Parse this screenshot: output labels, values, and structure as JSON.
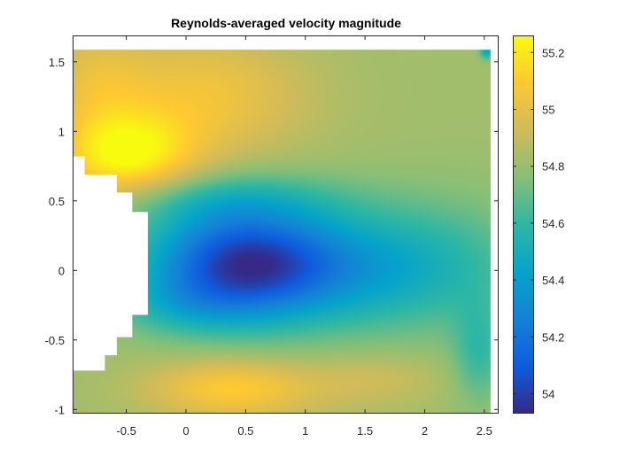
{
  "chart_data": {
    "type": "heatmap",
    "title": "Reynolds-averaged velocity magnitude",
    "xlabel": "",
    "ylabel": "",
    "xlim": [
      -0.95,
      2.62
    ],
    "ylim": [
      -1.03,
      1.69
    ],
    "x_ticks": [
      -0.5,
      0,
      0.5,
      1,
      1.5,
      2,
      2.5
    ],
    "x_tick_labels": [
      "-0.5",
      "0",
      "0.5",
      "1",
      "1.5",
      "2",
      "2.5"
    ],
    "y_ticks": [
      -1,
      -0.5,
      0,
      0.5,
      1,
      1.5
    ],
    "y_tick_labels": [
      "-1",
      "-0.5",
      "0",
      "0.5",
      "1",
      "1.5"
    ],
    "data_extent": {
      "x": [
        -0.95,
        2.55
      ],
      "y": [
        -1.03,
        1.59
      ]
    },
    "colormap": "parula",
    "colormap_stops": [
      "#352a87",
      "#0f5cdd",
      "#1481d6",
      "#06a4ca",
      "#2eb7a4",
      "#87bf77",
      "#d1bb59",
      "#fec832",
      "#f9fb0e"
    ],
    "colorbar": {
      "range": [
        53.93,
        55.26
      ],
      "ticks": [
        54,
        54.2,
        54.4,
        54.6,
        54.8,
        55,
        55.2
      ],
      "tick_labels": [
        "54",
        "54.2",
        "54.4",
        "54.6",
        "54.8",
        "55",
        "55.2"
      ]
    },
    "field": {
      "background": 54.82,
      "features": [
        {
          "name": "wake core",
          "x": 0.45,
          "y": 0.05,
          "sx": 0.55,
          "sy": 0.28,
          "delta": -0.72
        },
        {
          "name": "wake lower edge",
          "x": -0.05,
          "y": -0.25,
          "sx": 0.4,
          "sy": 0.15,
          "delta": -0.15
        },
        {
          "name": "wake extension",
          "x": 1.35,
          "y": 0.02,
          "sx": 0.75,
          "sy": 0.3,
          "delta": -0.34
        },
        {
          "name": "far wake",
          "x": 2.2,
          "y": 0.05,
          "sx": 0.5,
          "sy": 0.35,
          "delta": -0.1
        },
        {
          "name": "upper shear layer",
          "x": 0.25,
          "y": 0.52,
          "sx": 0.7,
          "sy": 0.14,
          "delta": -0.18
        },
        {
          "name": "upper-left fast region",
          "x": -0.5,
          "y": 0.82,
          "sx": 0.4,
          "sy": 0.22,
          "delta": 0.42
        },
        {
          "name": "upper fast band",
          "x": 0.15,
          "y": 1.25,
          "sx": 0.6,
          "sy": 0.32,
          "delta": 0.22
        },
        {
          "name": "top-left fast region",
          "x": -0.75,
          "y": 1.35,
          "sx": 0.3,
          "sy": 0.3,
          "delta": 0.15
        },
        {
          "name": "bottom fast region",
          "x": 0.4,
          "y": -0.85,
          "sx": 0.5,
          "sy": 0.15,
          "delta": 0.28
        },
        {
          "name": "bottom right fast region",
          "x": 1.6,
          "y": -0.78,
          "sx": 0.4,
          "sy": 0.14,
          "delta": 0.1
        },
        {
          "name": "corner blue patch",
          "x": 2.52,
          "y": 1.58,
          "sx": 0.04,
          "sy": 0.04,
          "delta": -0.38
        },
        {
          "name": "lower right low",
          "x": 2.45,
          "y": -0.6,
          "sx": 0.15,
          "sy": 0.25,
          "delta": -0.2
        }
      ]
    },
    "obstacle_mask": {
      "description": "white region (no data) left of x = -0.32",
      "polygon": [
        [
          -0.95,
          0.82
        ],
        [
          -0.85,
          0.82
        ],
        [
          -0.85,
          0.69
        ],
        [
          -0.58,
          0.69
        ],
        [
          -0.58,
          0.56
        ],
        [
          -0.45,
          0.56
        ],
        [
          -0.45,
          0.42
        ],
        [
          -0.32,
          0.42
        ],
        [
          -0.32,
          -0.32
        ],
        [
          -0.45,
          -0.32
        ],
        [
          -0.45,
          -0.48
        ],
        [
          -0.58,
          -0.48
        ],
        [
          -0.58,
          -0.61
        ],
        [
          -0.68,
          -0.61
        ],
        [
          -0.68,
          -0.72
        ],
        [
          -0.95,
          -0.72
        ]
      ]
    },
    "grid": false,
    "legend": "colorbar-right"
  }
}
